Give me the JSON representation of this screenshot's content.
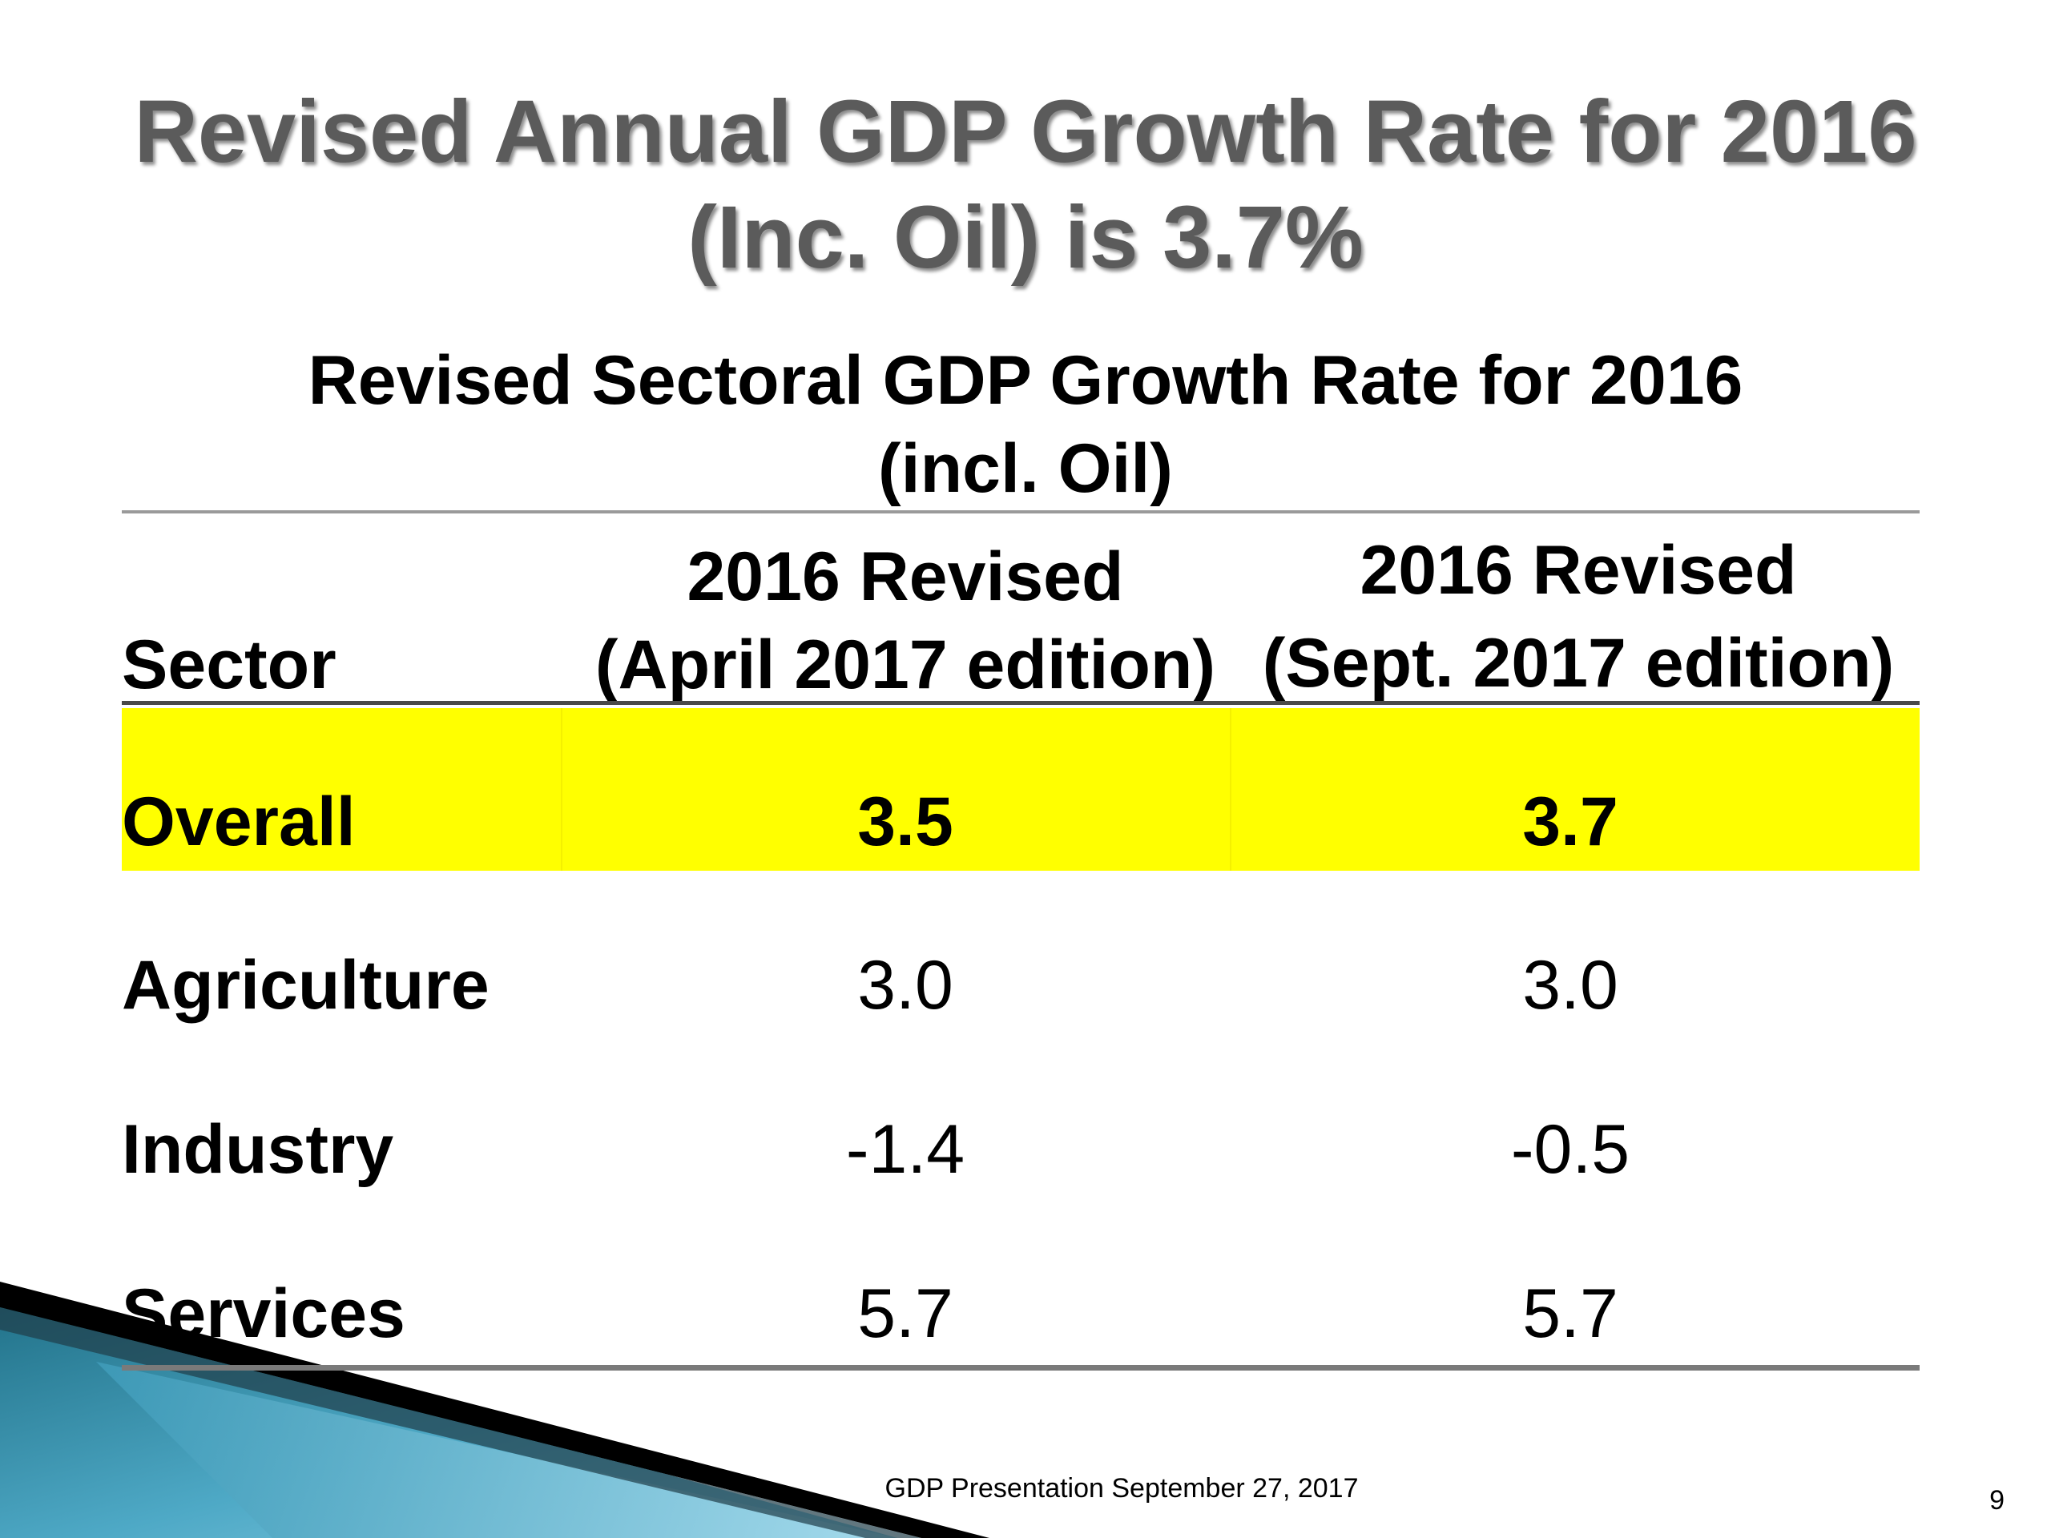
{
  "slide": {
    "title_line1": "Revised Annual GDP Growth Rate for 2016",
    "title_line2": "(Inc. Oil) is 3.7%",
    "subtitle_line1": "Revised Sectoral GDP Growth Rate for 2016",
    "subtitle_line2": "(incl. Oil)",
    "footer": "GDP Presentation September 27, 2017",
    "page_number": "9",
    "highlight_color": "#ffff00",
    "corner_colors": [
      "#000000",
      "#1f6f86",
      "#6fc3dd"
    ]
  },
  "table": {
    "headers": {
      "sector": "Sector",
      "col1_line1": "2016 Revised",
      "col1_line2": "(April 2017 edition)",
      "col2_line1": "2016 Revised",
      "col2_line2": "(Sept. 2017 edition)"
    },
    "rows": [
      {
        "sector": "Overall",
        "april_2017": "3.5",
        "sept_2017": "3.7",
        "highlighted": true
      },
      {
        "sector": "Agriculture",
        "april_2017": "3.0",
        "sept_2017": "3.0",
        "highlighted": false
      },
      {
        "sector": "Industry",
        "april_2017": "-1.4",
        "sept_2017": "-0.5",
        "highlighted": false
      },
      {
        "sector": "Services",
        "april_2017": "5.7",
        "sept_2017": "5.7",
        "highlighted": false
      }
    ]
  }
}
